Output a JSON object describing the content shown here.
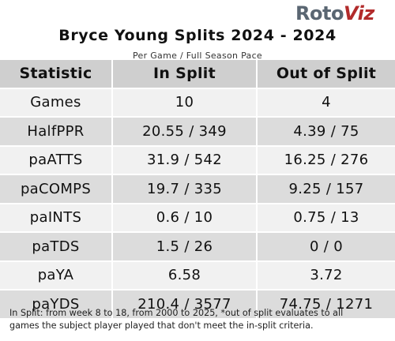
{
  "brand": {
    "logo_part1": "Roto",
    "logo_part2": "Viz"
  },
  "header": {
    "title": "Bryce Young Splits 2024 - 2024",
    "subtitle": "Per Game / Full Season Pace"
  },
  "table": {
    "columns": [
      "Statistic",
      "In Split",
      "Out of Split"
    ],
    "rows": [
      {
        "stat": "Games",
        "in_split": "10",
        "out_split": "4"
      },
      {
        "stat": "HalfPPR",
        "in_split": "20.55 / 349",
        "out_split": "4.39 / 75"
      },
      {
        "stat": "paATTS",
        "in_split": "31.9 / 542",
        "out_split": "16.25 / 276"
      },
      {
        "stat": "paCOMPS",
        "in_split": "19.7 / 335",
        "out_split": "9.25 / 157"
      },
      {
        "stat": "paINTS",
        "in_split": "0.6 / 10",
        "out_split": "0.75 / 13"
      },
      {
        "stat": "paTDS",
        "in_split": "1.5 / 26",
        "out_split": "0 / 0"
      },
      {
        "stat": "paYA",
        "in_split": "6.58",
        "out_split": "3.72"
      },
      {
        "stat": "paYDS",
        "in_split": "210.4 / 3577",
        "out_split": "74.75 / 1271"
      }
    ]
  },
  "footnote": {
    "line1": "In Split: from week 8 to 18, from 2000 to 2025,  *out of split evaluates to all",
    "line2": "games the subject player played that don't meet the in-split criteria."
  }
}
